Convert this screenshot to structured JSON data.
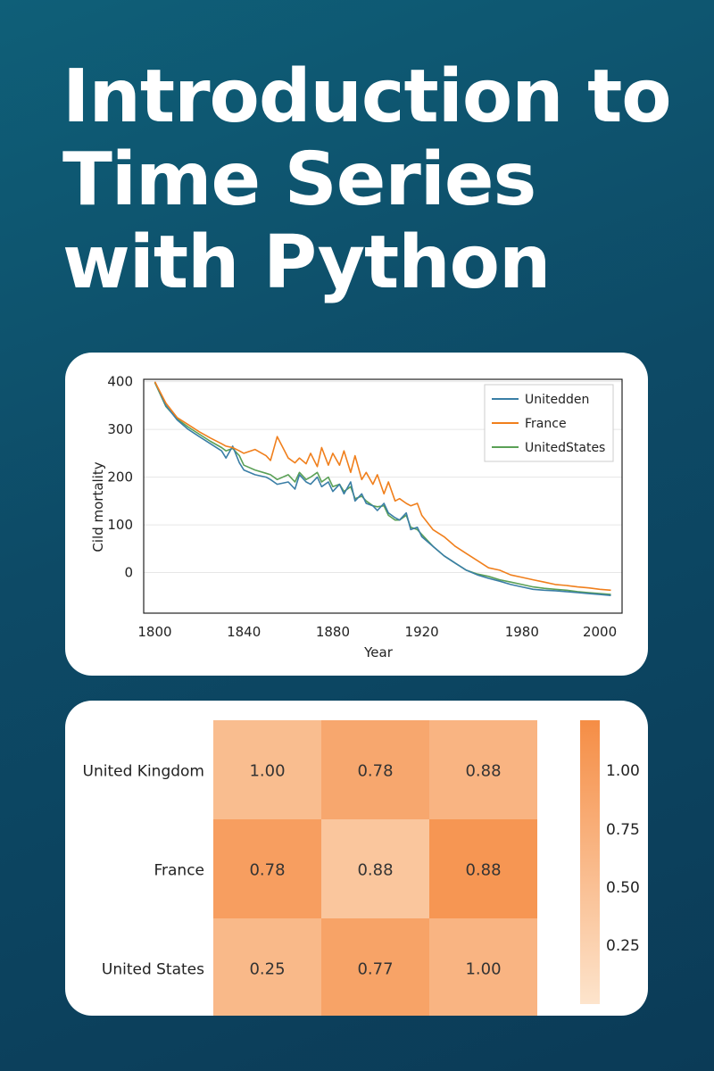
{
  "title_lines": [
    "Introduction to",
    "Time Series",
    "with Python"
  ],
  "colors": {
    "background_top": "#0f5f78",
    "background_bottom": "#0b3b57",
    "united_kingdom": "#3a7ea6",
    "france": "#f07f1c",
    "united_states": "#5aa056",
    "heat_low": "#fde4cc",
    "heat_high": "#f58d45"
  },
  "chart_data": [
    {
      "type": "line",
      "title": "",
      "xlabel": "Year",
      "ylabel": "Cіld mortality",
      "xticks": [
        "1800",
        "1840",
        "1880",
        "1920",
        "1980",
        "2000"
      ],
      "yticks": [
        "400",
        "300",
        "200",
        "100",
        "0"
      ],
      "ylim": [
        -85,
        405
      ],
      "grid": "horizontal",
      "legend": "top-right",
      "x": [
        1800,
        1805,
        1810,
        1815,
        1820,
        1825,
        1830,
        1832,
        1835,
        1838,
        1840,
        1845,
        1850,
        1852,
        1855,
        1860,
        1863,
        1865,
        1868,
        1870,
        1873,
        1875,
        1878,
        1880,
        1883,
        1885,
        1888,
        1890,
        1893,
        1895,
        1898,
        1900,
        1903,
        1905,
        1908,
        1910,
        1913,
        1915,
        1918,
        1920,
        1925,
        1930,
        1935,
        1940,
        1945,
        1950,
        1955,
        1960,
        1965,
        1970,
        1975,
        1980,
        1985,
        1990,
        1995,
        2000,
        2005
      ],
      "series": [
        {
          "name": "Unitedden",
          "color": "#3a7ea6",
          "values": [
            400,
            350,
            320,
            300,
            285,
            270,
            255,
            240,
            265,
            230,
            215,
            205,
            200,
            195,
            185,
            190,
            175,
            205,
            190,
            185,
            200,
            180,
            190,
            170,
            185,
            165,
            190,
            150,
            165,
            145,
            140,
            130,
            145,
            125,
            115,
            110,
            125,
            90,
            95,
            75,
            55,
            35,
            20,
            5,
            -5,
            -12,
            -18,
            -25,
            -30,
            -35,
            -37,
            -38,
            -40,
            -42,
            -44,
            -46,
            -48
          ]
        },
        {
          "name": "France",
          "color": "#f07f1c",
          "values": [
            400,
            355,
            325,
            310,
            295,
            282,
            270,
            265,
            262,
            255,
            250,
            258,
            245,
            235,
            285,
            240,
            230,
            240,
            228,
            250,
            222,
            262,
            225,
            250,
            225,
            255,
            210,
            245,
            195,
            210,
            185,
            205,
            165,
            190,
            150,
            155,
            145,
            140,
            145,
            120,
            90,
            75,
            55,
            40,
            25,
            10,
            5,
            -5,
            -10,
            -15,
            -20,
            -25,
            -27,
            -30,
            -32,
            -35,
            -37
          ]
        },
        {
          "name": "UnitedStates",
          "color": "#5aa056",
          "values": [
            398,
            348,
            322,
            305,
            290,
            275,
            262,
            255,
            260,
            245,
            225,
            215,
            208,
            205,
            195,
            205,
            190,
            210,
            195,
            200,
            210,
            190,
            200,
            180,
            185,
            170,
            180,
            155,
            160,
            150,
            140,
            138,
            140,
            120,
            110,
            110,
            120,
            95,
            90,
            80,
            55,
            35,
            20,
            5,
            -3,
            -8,
            -15,
            -20,
            -25,
            -30,
            -33,
            -35,
            -37,
            -40,
            -42,
            -44,
            -46
          ]
        }
      ]
    },
    {
      "type": "heatmap",
      "title": "",
      "rows": [
        "United Kingdom",
        "France",
        "United States"
      ],
      "values": [
        [
          1.0,
          0.78,
          0.88
        ],
        [
          0.78,
          0.88,
          0.88
        ],
        [
          0.25,
          0.77,
          1.0
        ]
      ],
      "cell_labels": [
        [
          "1.00",
          "0.78",
          "0.88"
        ],
        [
          "0.78",
          "0.88",
          "0.88"
        ],
        [
          "0.25",
          "0.77",
          "1.00"
        ]
      ],
      "colorbar_ticks": [
        "1.00",
        "0.75",
        "0.50",
        "0.25"
      ],
      "colorbar_values": [
        1.0,
        0.75,
        0.5,
        0.25
      ],
      "shading": [
        [
          0.45,
          0.7,
          0.55
        ],
        [
          0.8,
          0.35,
          0.9
        ],
        [
          0.5,
          0.75,
          0.55
        ]
      ],
      "vmin": 0.0,
      "vmax": 1.0
    }
  ]
}
